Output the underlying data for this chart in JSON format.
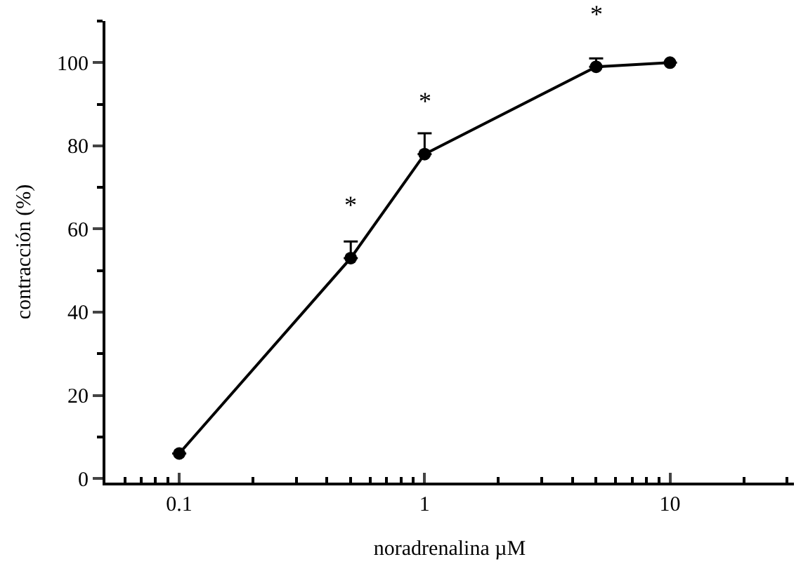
{
  "chart_data": {
    "type": "line",
    "xlabel": "noradrenalina µM",
    "ylabel": "contracción (%)",
    "x": [
      0.1,
      0.5,
      1,
      5,
      10
    ],
    "series": [
      {
        "color": "#000000",
        "values": [
          6,
          53,
          78,
          99,
          100
        ],
        "errors": [
          null,
          [
            53,
            57
          ],
          [
            78,
            83
          ],
          [
            99,
            101
          ],
          null
        ]
      }
    ],
    "log": "x",
    "marker": "circle",
    "line_style": "solid",
    "xlim": [
      0.05,
      32
    ],
    "ylim": [
      -1,
      110
    ],
    "xticks": [
      {
        "value": 0.05,
        "label": null
      },
      {
        "value": 0.06,
        "label": null
      },
      {
        "value": 0.07,
        "label": null
      },
      {
        "value": 0.08,
        "label": null
      },
      {
        "value": 0.09,
        "label": null
      },
      0.1,
      {
        "value": 0.2,
        "label": null
      },
      {
        "value": 0.3,
        "label": null
      },
      {
        "value": 0.4,
        "label": null
      },
      {
        "value": 0.5,
        "label": null
      },
      {
        "value": 0.6,
        "label": null
      },
      {
        "value": 0.7,
        "label": null
      },
      {
        "value": 0.8,
        "label": null
      },
      {
        "value": 0.9,
        "label": null
      },
      1,
      {
        "value": 2,
        "label": null
      },
      {
        "value": 3,
        "label": null
      },
      {
        "value": 4,
        "label": null
      },
      {
        "value": 5,
        "label": null
      },
      {
        "value": 6,
        "label": null
      },
      {
        "value": 7,
        "label": null
      },
      {
        "value": 8,
        "label": null
      },
      {
        "value": 9,
        "label": null
      },
      10,
      {
        "value": 20,
        "label": null
      },
      {
        "value": 30,
        "label": null
      }
    ],
    "yticks": [
      0,
      {
        "value": 10,
        "label": null
      },
      20,
      {
        "value": 30,
        "label": null
      },
      40,
      {
        "value": 50,
        "label": null
      },
      60,
      {
        "value": 70,
        "label": null
      },
      80,
      {
        "value": 90,
        "label": null
      },
      100,
      {
        "value": 110,
        "label": null
      }
    ],
    "annotations": [
      {
        "text": "*",
        "x": 0.5,
        "y": 53
      },
      {
        "text": "*",
        "x": 1,
        "y": 78
      },
      {
        "text": "*",
        "x": 5,
        "y": 99
      }
    ]
  }
}
